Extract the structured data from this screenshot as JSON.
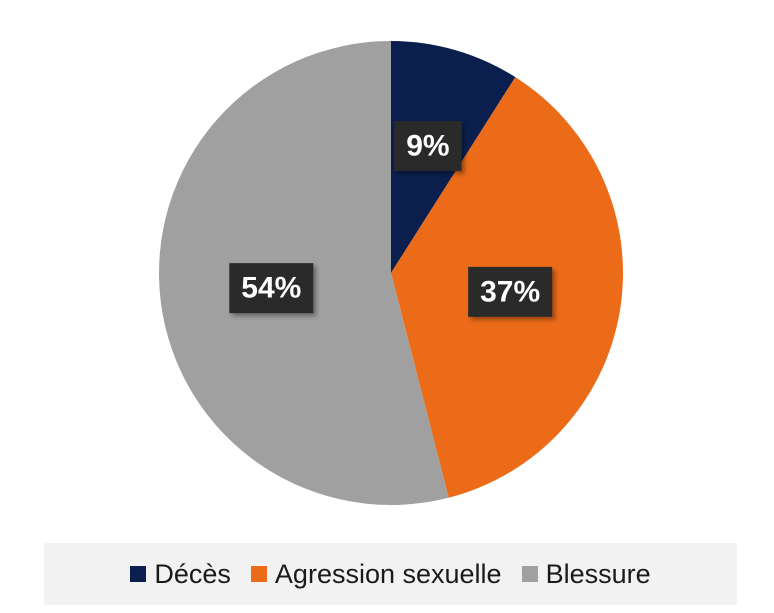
{
  "chart_data": {
    "type": "pie",
    "categories": [
      "Décès",
      "Agression sexuelle",
      "Blessure"
    ],
    "values": [
      9,
      37,
      54
    ],
    "labels": [
      "9%",
      "37%",
      "54%"
    ],
    "colors": [
      "#0b1f4f",
      "#ec6b19",
      "#a0a0a0"
    ],
    "start_angle_deg": 0,
    "direction": "clockwise",
    "legend_position": "bottom"
  }
}
